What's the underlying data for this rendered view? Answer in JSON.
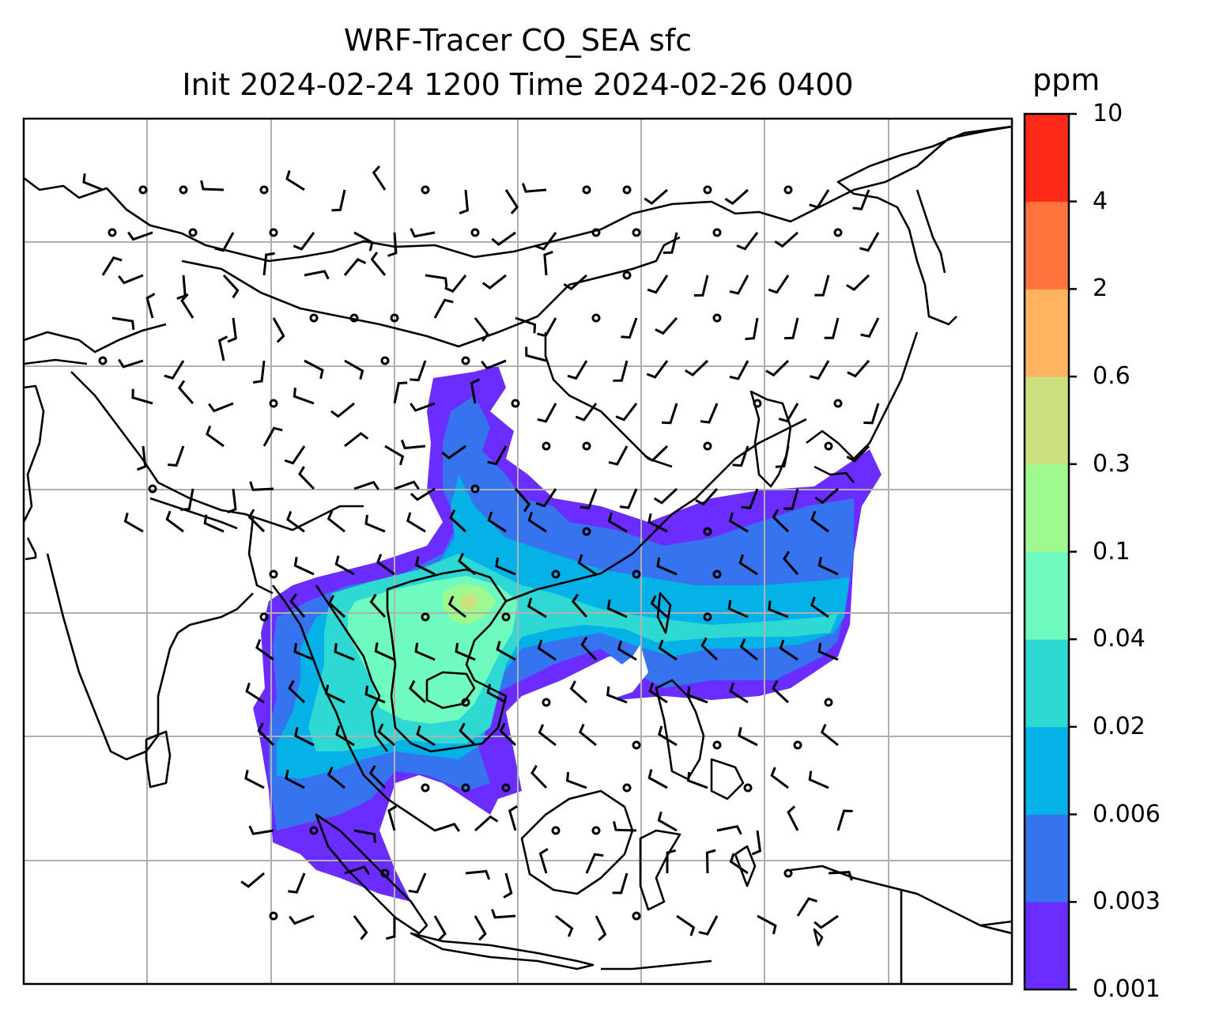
{
  "title_line1": "WRF-Tracer CO_SEA sfc",
  "title_line2": "Init 2024-02-24 1200 Time 2024-02-26 0400",
  "colorbar": {
    "unit": "ppm",
    "ticks": [
      "0.001",
      "0.003",
      "0.006",
      "0.02",
      "0.04",
      "0.1",
      "0.3",
      "0.6",
      "2",
      "4",
      "10"
    ],
    "colors": [
      "#6a2cff",
      "#3573ef",
      "#04b2e8",
      "#2ed8d3",
      "#6ffac0",
      "#9ef98e",
      "#cde080",
      "#feb461",
      "#ff733d",
      "#ff2a1a"
    ]
  },
  "map": {
    "background": "#ffffff",
    "gridline_color": "#b0b0b0",
    "coastline_color": "#000000"
  }
}
